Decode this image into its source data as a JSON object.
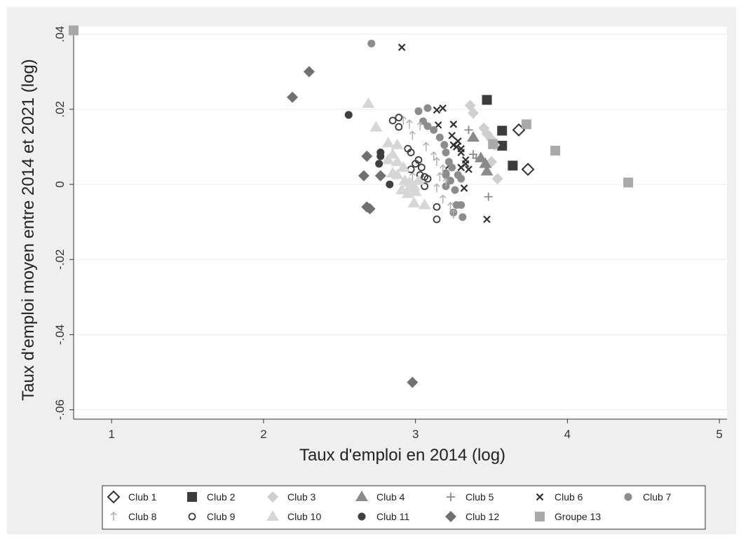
{
  "chart_data": {
    "type": "scatter",
    "title": "",
    "xlabel": "Taux d'emploi en 2014 (log)",
    "ylabel": "Taux d'emploi moyen entre 2014 et 2021 (log)",
    "xlim": [
      0.75,
      5.05
    ],
    "ylim": [
      -0.0625,
      0.042
    ],
    "x_ticks": [
      1,
      2,
      3,
      4,
      5
    ],
    "x_tick_labels": [
      "1",
      "2",
      "3",
      "4",
      "5"
    ],
    "y_ticks": [
      0.04,
      0.02,
      0,
      -0.02,
      -0.04,
      -0.06
    ],
    "y_tick_labels": [
      ".04",
      ".02",
      "0",
      "-.02",
      "-.04",
      "-.06"
    ],
    "grid": true,
    "legend_position": "bottom",
    "series": [
      {
        "name": "Club 1",
        "marker": "diamond-hollow",
        "color": "#333333",
        "points": [
          [
            3.68,
            0.0145
          ],
          [
            3.74,
            0.004
          ]
        ]
      },
      {
        "name": "Club 2",
        "marker": "square",
        "color": "#3c3c3c",
        "points": [
          [
            3.47,
            0.0225
          ],
          [
            3.57,
            0.0143
          ],
          [
            3.57,
            0.0103
          ],
          [
            3.64,
            0.005
          ]
        ]
      },
      {
        "name": "Club 3",
        "marker": "diamond",
        "color": "#cfcfcf",
        "points": [
          [
            3.36,
            0.021
          ],
          [
            3.38,
            0.019
          ],
          [
            3.45,
            0.015
          ],
          [
            3.47,
            0.0135
          ],
          [
            3.5,
            0.012
          ],
          [
            3.52,
            0.0105
          ],
          [
            3.5,
            0.006
          ],
          [
            3.54,
            0.0015
          ]
        ]
      },
      {
        "name": "Club 4",
        "marker": "triangle",
        "color": "#8a8a8a",
        "points": [
          [
            3.38,
            0.0125
          ],
          [
            3.43,
            0.007
          ],
          [
            3.46,
            0.0055
          ],
          [
            3.47,
            0.0035
          ]
        ]
      },
      {
        "name": "Club 5",
        "marker": "plus",
        "color": "#8a8a8a",
        "points": [
          [
            3.35,
            0.0145
          ],
          [
            3.38,
            0.008
          ],
          [
            3.4,
            0.007
          ],
          [
            3.48,
            -0.0033
          ]
        ]
      },
      {
        "name": "Club 6",
        "marker": "x",
        "color": "#2f2f2f",
        "points": [
          [
            2.91,
            0.0365
          ],
          [
            3.14,
            0.0198
          ],
          [
            3.18,
            0.0203
          ],
          [
            3.25,
            0.016
          ],
          [
            3.15,
            0.0158
          ],
          [
            3.24,
            0.013
          ],
          [
            3.28,
            0.0115
          ],
          [
            3.25,
            0.0105
          ],
          [
            3.3,
            0.0095
          ],
          [
            3.27,
            0.01
          ],
          [
            3.3,
            0.0085
          ],
          [
            3.33,
            0.0065
          ],
          [
            3.33,
            0.0055
          ],
          [
            3.3,
            0.0045
          ],
          [
            3.35,
            0.004
          ],
          [
            3.22,
            0.005
          ],
          [
            3.32,
            -0.001
          ],
          [
            3.47,
            -0.0093
          ]
        ]
      },
      {
        "name": "Club 7",
        "marker": "circle",
        "color": "#8c8c8c",
        "points": [
          [
            2.71,
            0.0375
          ],
          [
            3.02,
            0.0195
          ],
          [
            3.08,
            0.0203
          ],
          [
            3.05,
            0.0168
          ],
          [
            3.08,
            0.0155
          ],
          [
            3.12,
            0.0145
          ],
          [
            3.16,
            0.0125
          ],
          [
            3.19,
            0.0105
          ],
          [
            3.2,
            0.0085
          ],
          [
            3.22,
            0.006
          ],
          [
            3.24,
            0.0045
          ],
          [
            3.2,
            0.0025
          ],
          [
            3.23,
            0.001
          ],
          [
            3.28,
            0.0025
          ],
          [
            3.3,
            0.0015
          ],
          [
            3.2,
            -0.0005
          ],
          [
            3.26,
            -0.0015
          ],
          [
            3.27,
            -0.0055
          ],
          [
            3.3,
            -0.0055
          ],
          [
            3.25,
            -0.0075
          ],
          [
            3.31,
            -0.0087
          ],
          [
            3.2,
            0.003
          ]
        ]
      },
      {
        "name": "Club 8",
        "marker": "arrow-up",
        "color": "#b0b0b0",
        "points": [
          [
            2.92,
            0.017
          ],
          [
            2.96,
            0.016
          ],
          [
            3.03,
            0.0155
          ],
          [
            2.98,
            0.013
          ],
          [
            3.07,
            0.01
          ],
          [
            3.12,
            0.0075
          ],
          [
            3.14,
            0.006
          ],
          [
            3.02,
            0.005
          ],
          [
            3.18,
            0.004
          ],
          [
            3.16,
            0.002
          ],
          [
            3.2,
            0.0005
          ],
          [
            3.14,
            -0.001
          ],
          [
            3.18,
            -0.004
          ],
          [
            3.23,
            -0.006
          ],
          [
            3.25,
            -0.008
          ],
          [
            2.98,
            0.002
          ]
        ]
      },
      {
        "name": "Club 9",
        "marker": "circle-hollow",
        "color": "#3a3a3a",
        "points": [
          [
            2.85,
            0.017
          ],
          [
            2.89,
            0.0178
          ],
          [
            2.89,
            0.0153
          ],
          [
            2.95,
            0.0095
          ],
          [
            2.97,
            0.0085
          ],
          [
            3.02,
            0.0065
          ],
          [
            3.04,
            0.0045
          ],
          [
            3.03,
            0.0025
          ],
          [
            3.06,
            0.002
          ],
          [
            3.08,
            0.0015
          ],
          [
            3.06,
            -0.0005
          ],
          [
            3.0,
            0.0055
          ],
          [
            3.14,
            -0.006
          ],
          [
            3.14,
            -0.0093
          ],
          [
            2.97,
            0.004
          ]
        ]
      },
      {
        "name": "Club 10",
        "marker": "triangle",
        "color": "#d6d6d6",
        "points": [
          [
            2.69,
            0.0215
          ],
          [
            2.74,
            0.0152
          ],
          [
            2.82,
            0.011
          ],
          [
            2.88,
            0.0105
          ],
          [
            2.85,
            0.008
          ],
          [
            2.82,
            0.0065
          ],
          [
            2.88,
            0.006
          ],
          [
            2.92,
            0.0045
          ],
          [
            2.88,
            0.0025
          ],
          [
            2.93,
            0.001
          ],
          [
            2.96,
            0.0005
          ],
          [
            2.99,
            -0.0005
          ],
          [
            2.91,
            -0.0015
          ],
          [
            3.0,
            -0.002
          ],
          [
            2.95,
            -0.0025
          ],
          [
            2.99,
            -0.005
          ],
          [
            3.06,
            -0.0055
          ],
          [
            3.02,
            0.001
          ],
          [
            2.96,
            -0.001
          ],
          [
            2.85,
            0.003
          ]
        ]
      },
      {
        "name": "Club 11",
        "marker": "circle",
        "color": "#3f3f3f",
        "points": [
          [
            2.56,
            0.0185
          ],
          [
            2.77,
            0.0085
          ],
          [
            2.77,
            0.0075
          ],
          [
            2.76,
            0.0055
          ],
          [
            2.83,
            0.0
          ]
        ]
      },
      {
        "name": "Club 12",
        "marker": "diamond",
        "color": "#707070",
        "points": [
          [
            2.3,
            0.03
          ],
          [
            2.19,
            0.0232
          ],
          [
            2.68,
            0.0075
          ],
          [
            2.66,
            0.0023
          ],
          [
            2.77,
            0.0023
          ],
          [
            2.68,
            -0.006
          ],
          [
            2.7,
            -0.0065
          ],
          [
            2.98,
            -0.0527
          ]
        ]
      },
      {
        "name": "Groupe 13",
        "marker": "square",
        "color": "#a9a9a9",
        "points": [
          [
            0.75,
            0.041
          ],
          [
            3.73,
            0.016
          ],
          [
            3.51,
            0.0107
          ],
          [
            3.92,
            0.009
          ],
          [
            4.4,
            0.0005
          ]
        ]
      }
    ]
  }
}
